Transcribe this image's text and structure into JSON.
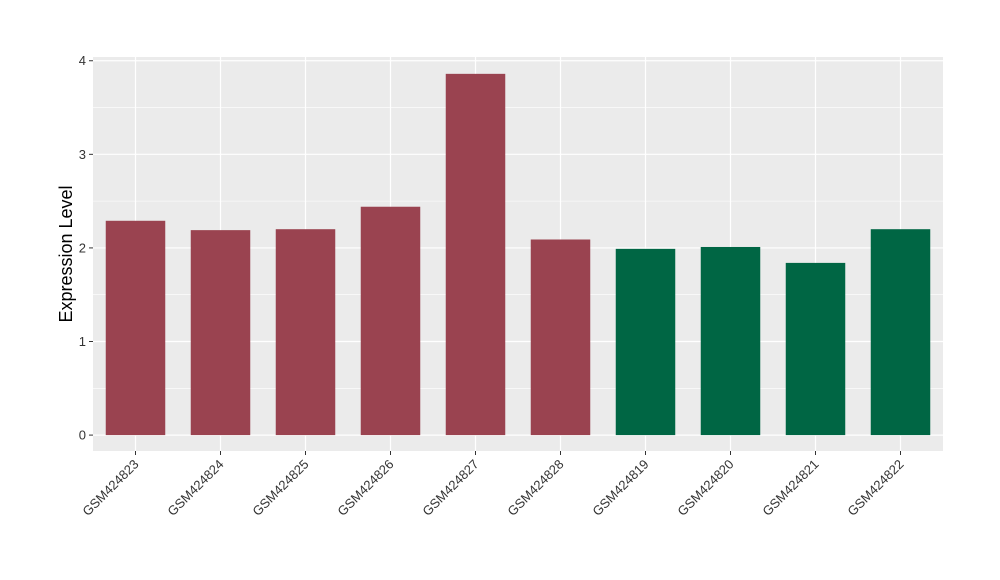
{
  "chart_data": {
    "type": "bar",
    "title": "",
    "xlabel": "",
    "ylabel": "Expression Level",
    "ylim": [
      -0.17,
      4.04
    ],
    "yticks": [
      0,
      1,
      2,
      3,
      4
    ],
    "grid": true,
    "categories": [
      "GSM424823",
      "GSM424824",
      "GSM424825",
      "GSM424826",
      "GSM424827",
      "GSM424828",
      "GSM424819",
      "GSM424820",
      "GSM424821",
      "GSM424822"
    ],
    "values": [
      2.29,
      2.19,
      2.2,
      2.44,
      3.86,
      2.09,
      1.99,
      2.01,
      1.84,
      2.2
    ],
    "colors": [
      "#9a4350",
      "#9a4350",
      "#9a4350",
      "#9a4350",
      "#9a4350",
      "#9a4350",
      "#006644",
      "#006644",
      "#006644",
      "#006644"
    ],
    "panel_background": "#ebebeb",
    "gridline_color": "#ffffff"
  }
}
